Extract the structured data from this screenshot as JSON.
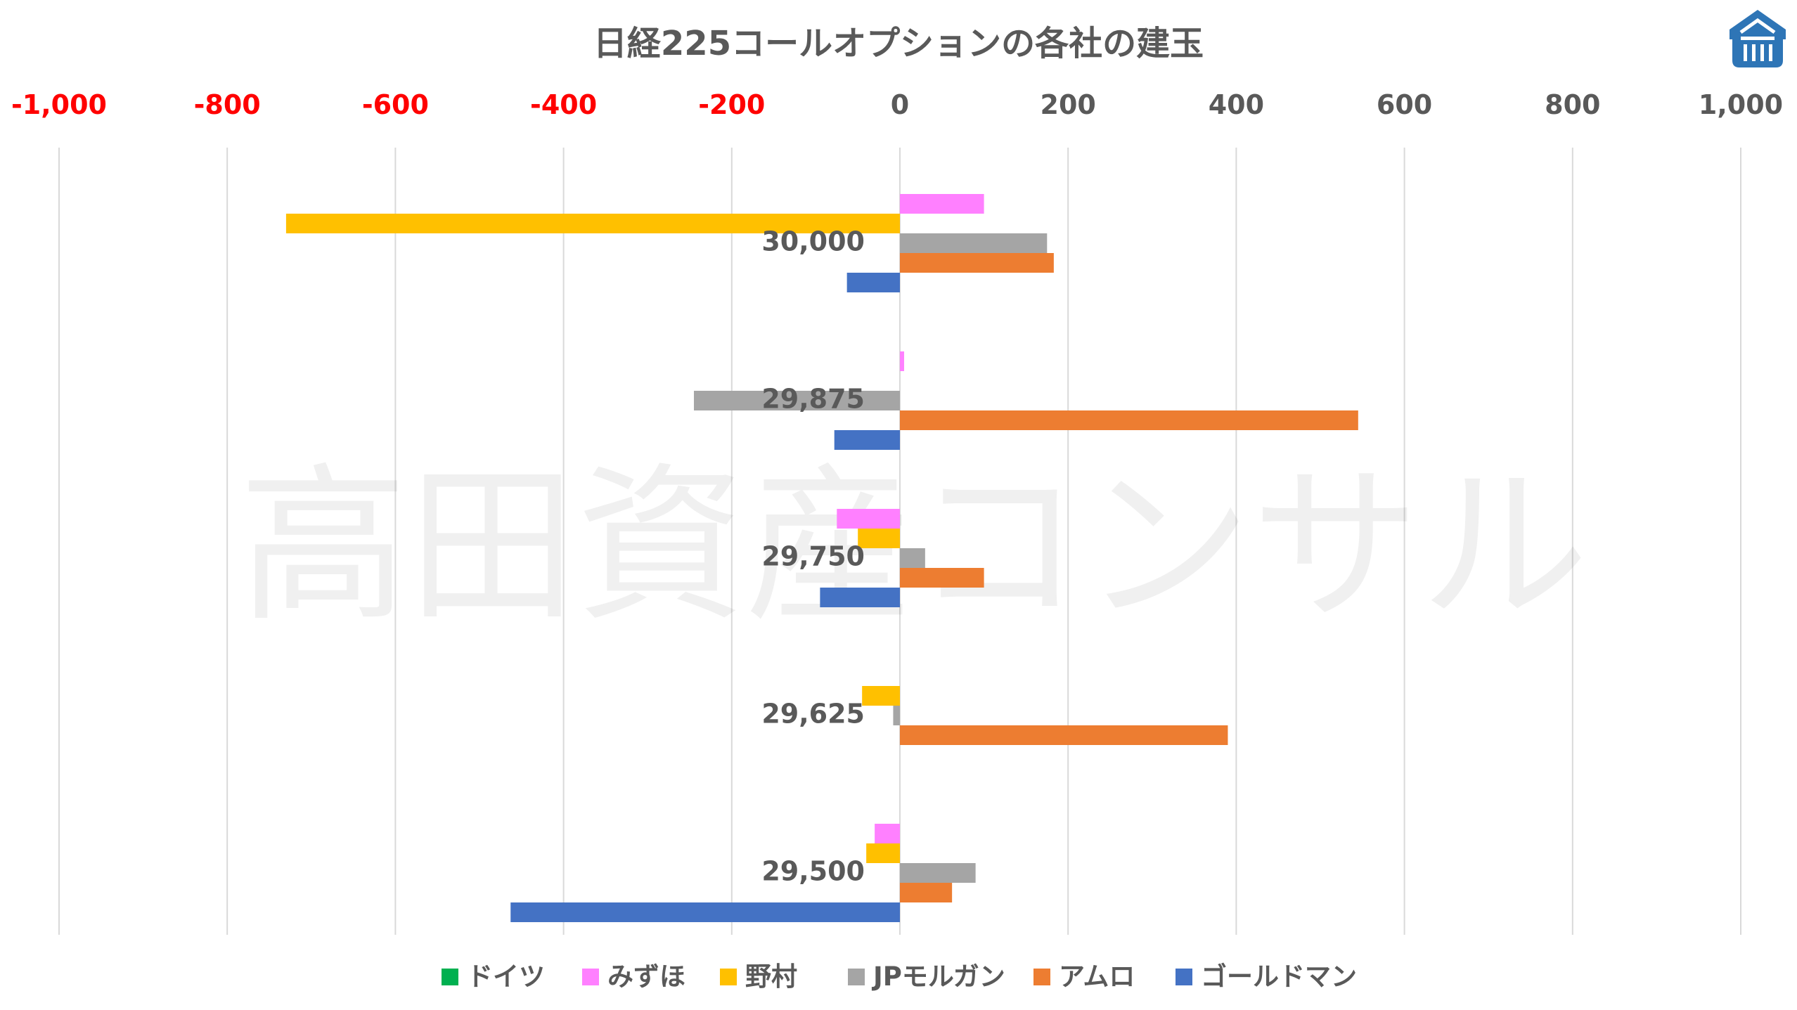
{
  "chart_data": {
    "type": "bar",
    "orientation": "horizontal",
    "title": "日経225コールオプションの各社の建玉",
    "watermark": "高田資産コンサル",
    "xlim": [
      -1000,
      1000
    ],
    "x_ticks": [
      -1000,
      -800,
      -600,
      -400,
      -200,
      0,
      200,
      400,
      600,
      800,
      1000
    ],
    "x_tick_labels": [
      "-1,000",
      "-800",
      "-600",
      "-400",
      "-200",
      "0",
      "200",
      "400",
      "600",
      "800",
      "1,000"
    ],
    "negative_tick_color": "#ff0000",
    "positive_tick_color": "#595959",
    "grid": true,
    "legend_position": "bottom",
    "categories": [
      "30,000",
      "29,875",
      "29,750",
      "29,625",
      "29,500"
    ],
    "series": [
      {
        "name": "ドイツ",
        "color": "#00b050",
        "values": [
          0,
          0,
          0,
          0,
          0
        ]
      },
      {
        "name": "みずほ",
        "color": "#ff80ff",
        "values": [
          100,
          5,
          -75,
          0,
          -30
        ]
      },
      {
        "name": "野村",
        "color": "#ffc000",
        "values": [
          -730,
          0,
          -50,
          -45,
          -40
        ]
      },
      {
        "name": "JPモルガン",
        "color": "#a5a5a5",
        "values": [
          175,
          -245,
          30,
          -8,
          90
        ]
      },
      {
        "name": "アムロ",
        "color": "#ed7d31",
        "values": [
          183,
          545,
          100,
          390,
          62
        ]
      },
      {
        "name": "ゴールドマン",
        "color": "#4472c4",
        "values": [
          -63,
          -78,
          -95,
          0,
          -463
        ]
      }
    ]
  },
  "logo": {
    "name": "logo-icon",
    "color": "#2e75b6"
  }
}
